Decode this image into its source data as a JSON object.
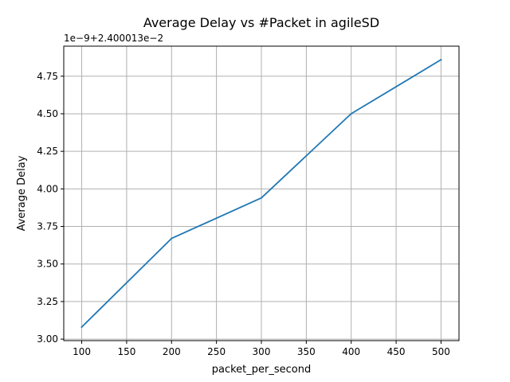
{
  "chart_data": {
    "type": "line",
    "title": "Average Delay vs #Packet in agileSD",
    "xlabel": "packet_per_second",
    "ylabel": "Average Delay",
    "y_offset_label": "1e−9+2.400013e−2",
    "x": [
      100,
      200,
      300,
      400,
      500
    ],
    "series": [
      {
        "values": [
          3.08,
          3.67,
          3.94,
          4.5,
          4.86
        ]
      }
    ],
    "xlim": [
      80,
      520
    ],
    "ylim": [
      2.99,
      4.95
    ],
    "xticks": [
      100,
      150,
      200,
      250,
      300,
      350,
      400,
      450,
      500
    ],
    "xtick_labels": [
      "100",
      "150",
      "200",
      "250",
      "300",
      "350",
      "400",
      "450",
      "500"
    ],
    "yticks": [
      3.0,
      3.25,
      3.5,
      3.75,
      4.0,
      4.25,
      4.5,
      4.75
    ],
    "ytick_labels": [
      "3.00",
      "3.25",
      "3.50",
      "3.75",
      "4.00",
      "4.25",
      "4.50",
      "4.75"
    ],
    "grid": true,
    "colors": {
      "series": "#1f77b4",
      "grid": "#b0b0b0"
    }
  }
}
